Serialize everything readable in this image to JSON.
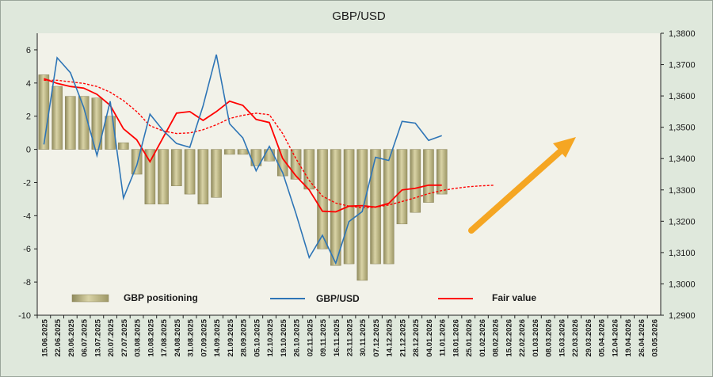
{
  "chart_data": {
    "type": "bar+line",
    "title": "GBP/USD",
    "x_labels": [
      "15.06.2025",
      "22.06.2025",
      "29.06.2025",
      "06.07.2025",
      "13.07.2025",
      "20.07.2025",
      "27.07.2025",
      "03.08.2025",
      "10.08.2025",
      "17.08.2025",
      "24.08.2025",
      "31.08.2025",
      "07.09.2025",
      "14.09.2025",
      "21.09.2025",
      "28.09.2025",
      "05.10.2025",
      "12.10.2025",
      "19.10.2025",
      "26.10.2025",
      "02.11.2025",
      "09.11.2025",
      "16.11.2025",
      "23.11.2025",
      "30.11.2025",
      "07.12.2025",
      "14.12.2025",
      "21.12.2025",
      "28.12.2025",
      "04.01.2026",
      "11.01.2026",
      "18.01.2026",
      "25.01.2026",
      "01.02.2026",
      "08.02.2026",
      "15.02.2026",
      "22.02.2026",
      "01.03.2026",
      "08.03.2026",
      "15.03.2026",
      "22.03.2026",
      "29.03.2026",
      "05.04.2026",
      "12.04.2026",
      "19.04.2026",
      "26.04.2026",
      "03.05.2026"
    ],
    "left_axis": {
      "min": -10,
      "max": 7,
      "ticks": [
        6,
        4,
        2,
        0,
        -2,
        -4,
        -6,
        -8,
        -10
      ]
    },
    "right_axis": {
      "min": 1.29,
      "max": 1.38,
      "ticks": [
        "1,3800",
        "1,3700",
        "1,3600",
        "1,3500",
        "1,3400",
        "1,3300",
        "1,3200",
        "1,3100",
        "1,3000",
        "1,2900"
      ]
    },
    "series": [
      {
        "name": "GBP positioning",
        "type": "bar",
        "axis": "left",
        "values": [
          4.5,
          3.8,
          3.2,
          3.2,
          3.1,
          2.0,
          0.4,
          -1.5,
          -3.3,
          -3.3,
          -2.2,
          -2.7,
          -3.3,
          -2.9,
          -0.3,
          -0.3,
          -1.0,
          -0.7,
          -1.6,
          -1.8,
          -2.4,
          -6.0,
          -7.0,
          -6.9,
          -7.9,
          -6.9,
          -6.9,
          -4.5,
          -3.8,
          -3.2,
          -2.7
        ]
      },
      {
        "name": "GBP/USD",
        "type": "line",
        "axis": "right",
        "values": [
          1.3445,
          1.3722,
          1.3674,
          1.3564,
          1.341,
          1.3583,
          1.3274,
          1.3378,
          1.3542,
          1.3489,
          1.3448,
          1.3436,
          1.3568,
          1.3732,
          1.3511,
          1.3466,
          1.3361,
          1.3439,
          1.3355,
          1.3225,
          1.3084,
          1.3155,
          1.3066,
          1.3199,
          1.3231,
          1.3404,
          1.3394,
          1.3519,
          1.3513,
          1.3458,
          1.3473
        ]
      },
      {
        "name": "Fair value",
        "type": "line",
        "axis": "right",
        "values": [
          1.3655,
          1.364,
          1.363,
          1.3625,
          1.3605,
          1.357,
          1.3495,
          1.346,
          1.339,
          1.3468,
          1.3545,
          1.355,
          1.3522,
          1.355,
          1.3583,
          1.357,
          1.3525,
          1.3515,
          1.34,
          1.3345,
          1.33,
          1.3232,
          1.323,
          1.3248,
          1.325,
          1.3245,
          1.3257,
          1.33,
          1.3305,
          1.3315,
          1.3315
        ]
      },
      {
        "name": "Fair value forecast",
        "type": "dashed",
        "axis": "right",
        "values": [
          1.365,
          1.365,
          1.3645,
          1.364,
          1.363,
          1.3612,
          1.3585,
          1.355,
          1.3505,
          1.3488,
          1.348,
          1.3482,
          1.3492,
          1.3508,
          1.3528,
          1.3538,
          1.3545,
          1.354,
          1.348,
          1.34,
          1.333,
          1.328,
          1.3258,
          1.3248,
          1.3243,
          1.3245,
          1.3252,
          1.3263,
          1.3275,
          1.3288,
          1.3298,
          1.3305,
          1.331,
          1.3313,
          1.3315
        ]
      }
    ],
    "legend": [
      {
        "label": "GBP positioning",
        "kind": "bar"
      },
      {
        "label": "GBP/USD",
        "kind": "line"
      },
      {
        "label": "Fair value",
        "kind": "line"
      }
    ],
    "legend_position": "bottom",
    "grid": false,
    "annotation": "upward arrow",
    "colors": {
      "bar": "#b5ad7a",
      "gbpusd": "#2e75b6",
      "fair": "#ff0000",
      "arrow": "#f5a623",
      "plot_bg": "#f2f2e9",
      "frame_bg": "#dfe8dc",
      "right_axis": "#c00000"
    }
  }
}
